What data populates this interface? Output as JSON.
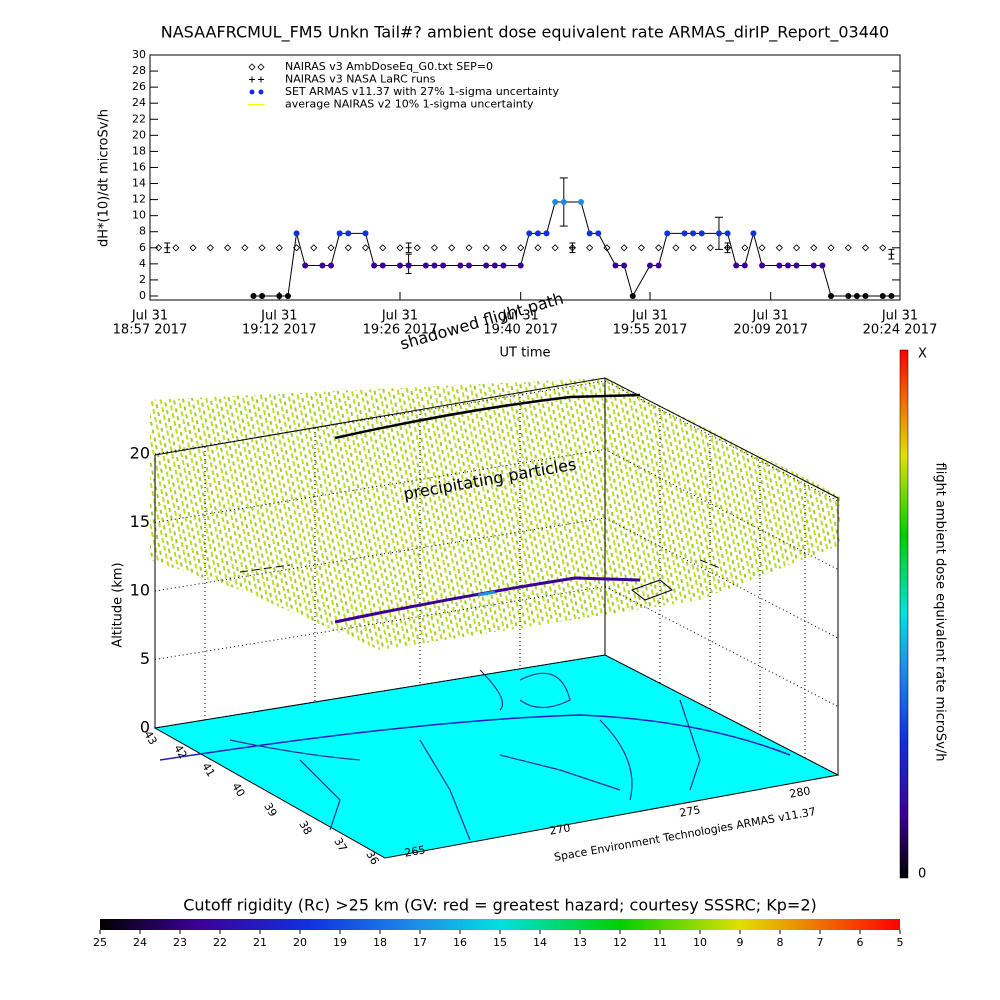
{
  "chart_data": {
    "type": "line",
    "title": "NASAAFRCMUL_FM5 Unkn Tail#? ambient dose equivalent rate ARMAS_dirIP_Report_03440",
    "ylabel": "dH*(10)/dt microSv/h",
    "xlabel": "UT time",
    "xlim": [
      "2017-07-31 18:57",
      "2017-07-31 20:24"
    ],
    "xticks": [
      {
        "value": "2017-07-31 18:57",
        "label": [
          "Jul 31",
          "18:57 2017"
        ]
      },
      {
        "value": "2017-07-31 19:12",
        "label": [
          "Jul 31",
          "19:12 2017"
        ]
      },
      {
        "value": "2017-07-31 19:26",
        "label": [
          "Jul 31",
          "19:26 2017"
        ]
      },
      {
        "value": "2017-07-31 19:40",
        "label": [
          "Jul 31",
          "19:40 2017"
        ]
      },
      {
        "value": "2017-07-31 19:55",
        "label": [
          "Jul 31",
          "19:55 2017"
        ]
      },
      {
        "value": "2017-07-31 20:09",
        "label": [
          "Jul 31",
          "20:09 2017"
        ]
      },
      {
        "value": "2017-07-31 20:24",
        "label": [
          "Jul 31",
          "20:24 2017"
        ]
      }
    ],
    "ylim": [
      -0.5,
      30
    ],
    "yticks": [
      0,
      2,
      4,
      6,
      8,
      10,
      12,
      14,
      16,
      18,
      20,
      22,
      24,
      26,
      28,
      30
    ],
    "series": [
      {
        "name": "NAIRAS v3 AmbDoseEq_G0.txt SEP=0",
        "color": "#000000",
        "marker": "diamond",
        "x": [
          "2017-07-31 18:58",
          "2017-07-31 19:00",
          "2017-07-31 19:02",
          "2017-07-31 19:04",
          "2017-07-31 19:06",
          "2017-07-31 19:08",
          "2017-07-31 19:10",
          "2017-07-31 19:12",
          "2017-07-31 19:14",
          "2017-07-31 19:16",
          "2017-07-31 19:18",
          "2017-07-31 19:20",
          "2017-07-31 19:22",
          "2017-07-31 19:24",
          "2017-07-31 19:26",
          "2017-07-31 19:28",
          "2017-07-31 19:30",
          "2017-07-31 19:32",
          "2017-07-31 19:34",
          "2017-07-31 19:36",
          "2017-07-31 19:38",
          "2017-07-31 19:40",
          "2017-07-31 19:42",
          "2017-07-31 19:44",
          "2017-07-31 19:46",
          "2017-07-31 19:48",
          "2017-07-31 19:50",
          "2017-07-31 19:52",
          "2017-07-31 19:54",
          "2017-07-31 19:56",
          "2017-07-31 19:58",
          "2017-07-31 20:00",
          "2017-07-31 20:02",
          "2017-07-31 20:04",
          "2017-07-31 20:06",
          "2017-07-31 20:08",
          "2017-07-31 20:10",
          "2017-07-31 20:12",
          "2017-07-31 20:14",
          "2017-07-31 20:16",
          "2017-07-31 20:18",
          "2017-07-31 20:20",
          "2017-07-31 20:22"
        ],
        "values": [
          6,
          6,
          6,
          6,
          6,
          6,
          6,
          6,
          6,
          6,
          6,
          6,
          6,
          6,
          6,
          6,
          6,
          6,
          6,
          6,
          6,
          6,
          6,
          6,
          6,
          6,
          6,
          6,
          6,
          6,
          6,
          6,
          6,
          6,
          6,
          6,
          6,
          6,
          6,
          6,
          6,
          6,
          6
        ]
      },
      {
        "name": "NAIRAS v3 NASA LaRC runs",
        "color": "#000000",
        "marker": "plus",
        "x": [
          "2017-07-31 18:59",
          "2017-07-31 19:27",
          "2017-07-31 19:27",
          "2017-07-31 19:46",
          "2017-07-31 20:04",
          "2017-07-31 20:23"
        ],
        "values": [
          6,
          4,
          6,
          6,
          6,
          5.2
        ],
        "errors": [
          0.6,
          1.2,
          0.6,
          0.6,
          0.6,
          0.6
        ]
      },
      {
        "name": "SET ARMAS v11.37 with 27% 1-sigma uncertainty",
        "color": "#1030e0",
        "marker": "circle",
        "x": [
          "2017-07-31 19:09",
          "2017-07-31 19:10",
          "2017-07-31 19:12",
          "2017-07-31 19:13",
          "2017-07-31 19:14",
          "2017-07-31 19:15",
          "2017-07-31 19:17",
          "2017-07-31 19:18",
          "2017-07-31 19:19",
          "2017-07-31 19:20",
          "2017-07-31 19:22",
          "2017-07-31 19:23",
          "2017-07-31 19:24",
          "2017-07-31 19:26",
          "2017-07-31 19:27",
          "2017-07-31 19:29",
          "2017-07-31 19:30",
          "2017-07-31 19:31",
          "2017-07-31 19:33",
          "2017-07-31 19:34",
          "2017-07-31 19:36",
          "2017-07-31 19:37",
          "2017-07-31 19:38",
          "2017-07-31 19:40",
          "2017-07-31 19:41",
          "2017-07-31 19:42",
          "2017-07-31 19:43",
          "2017-07-31 19:44",
          "2017-07-31 19:45",
          "2017-07-31 19:47",
          "2017-07-31 19:48",
          "2017-07-31 19:49",
          "2017-07-31 19:51",
          "2017-07-31 19:52",
          "2017-07-31 19:53",
          "2017-07-31 19:55",
          "2017-07-31 19:56",
          "2017-07-31 19:57",
          "2017-07-31 19:59",
          "2017-07-31 20:00",
          "2017-07-31 20:01",
          "2017-07-31 20:03",
          "2017-07-31 20:04",
          "2017-07-31 20:05",
          "2017-07-31 20:06",
          "2017-07-31 20:07",
          "2017-07-31 20:08",
          "2017-07-31 20:10",
          "2017-07-31 20:11",
          "2017-07-31 20:12",
          "2017-07-31 20:14",
          "2017-07-31 20:15",
          "2017-07-31 20:16",
          "2017-07-31 20:18",
          "2017-07-31 20:19",
          "2017-07-31 20:20",
          "2017-07-31 20:22",
          "2017-07-31 20:23"
        ],
        "values": [
          0,
          0,
          0,
          0,
          7.8,
          3.8,
          3.8,
          3.8,
          7.8,
          7.8,
          7.8,
          3.8,
          3.8,
          3.8,
          3.8,
          3.8,
          3.8,
          3.8,
          3.8,
          3.8,
          3.8,
          3.8,
          3.8,
          3.8,
          7.8,
          7.8,
          7.8,
          11.7,
          11.7,
          11.7,
          7.8,
          7.8,
          3.8,
          3.8,
          0,
          3.8,
          3.8,
          7.8,
          7.8,
          7.8,
          7.8,
          7.8,
          7.8,
          3.8,
          3.8,
          7.8,
          3.8,
          3.8,
          3.8,
          3.8,
          3.8,
          3.8,
          0,
          0,
          0,
          0,
          0,
          0
        ],
        "error_bars": [
          {
            "x": "2017-07-31 19:45",
            "value": 11.7,
            "error": 3
          },
          {
            "x": "2017-07-31 20:03",
            "value": 7.8,
            "error": 2
          }
        ]
      },
      {
        "name": "average NAIRAS v2 10% 1-sigma uncertainty",
        "color": "#ffff00",
        "marker": "none",
        "x": [],
        "values": []
      }
    ]
  },
  "scene": {
    "path_label": "shadowed flight path",
    "particles_label": "precipitating particles",
    "z_label": "Altitude (km)",
    "z_ticks": [
      0,
      5,
      10,
      15,
      20
    ],
    "lat_ticks": [
      43,
      42,
      41,
      40,
      39,
      38,
      37,
      36
    ],
    "lon_ticks": [
      265,
      270,
      275,
      280
    ],
    "credit": "Space Environment Technologies ARMAS v11.37",
    "colorbar": {
      "label": "flight ambient dose equivalent rate microSv/h",
      "max_label": "X",
      "min_label": "0"
    }
  },
  "rigidity_scale": {
    "title": "Cutoff rigidity (Rc) >25 km (GV: red = greatest hazard; courtesy SSSRC; Kp=2)",
    "ticks": [
      25,
      24,
      23,
      22,
      21,
      20,
      19,
      18,
      17,
      16,
      15,
      14,
      13,
      12,
      11,
      10,
      9,
      8,
      7,
      6,
      5
    ]
  }
}
